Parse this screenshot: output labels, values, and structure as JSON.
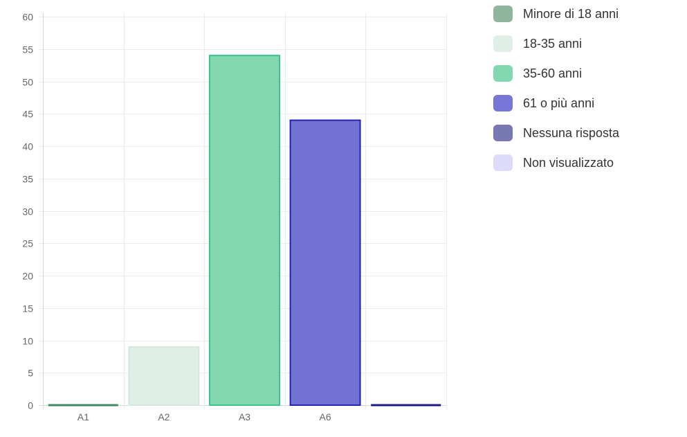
{
  "chart_data": {
    "type": "bar",
    "categories": [
      "A1",
      "A2",
      "A3",
      "A6",
      ""
    ],
    "values": [
      0,
      9,
      54,
      44,
      0
    ],
    "ylim": [
      0,
      60
    ],
    "yticks": [
      0,
      5,
      10,
      15,
      20,
      25,
      30,
      35,
      40,
      45,
      50,
      55,
      60
    ],
    "grid": true,
    "legend_position": "right",
    "legend": [
      {
        "label": "Minore di 18 anni",
        "fill": "#8fb59f",
        "border": "#8fb59f"
      },
      {
        "label": "18-35 anni",
        "fill": "#e0efe6",
        "border": "#e0efe6"
      },
      {
        "label": "35-60 anni",
        "fill": "#82d8b0",
        "border": "#82d8b0"
      },
      {
        "label": "61 o più anni",
        "fill": "#7676d6",
        "border": "#7676d6"
      },
      {
        "label": "Nessuna risposta",
        "fill": "#7878b3",
        "border": "#7878b3"
      },
      {
        "label": "Non visualizzato",
        "fill": "#dcdcfa",
        "border": "#dcdcfa"
      }
    ],
    "bar_colors": [
      {
        "fill": "#5f9e80",
        "border": "#3f8a62"
      },
      {
        "fill": "#e0efe6",
        "border": "#d3e8dc"
      },
      {
        "fill": "#82d8b0",
        "border": "#3cc38a"
      },
      {
        "fill": "#7272d2",
        "border": "#2424b0"
      },
      {
        "fill": "#1a1a8a",
        "border": "#1a1a8a"
      }
    ]
  }
}
